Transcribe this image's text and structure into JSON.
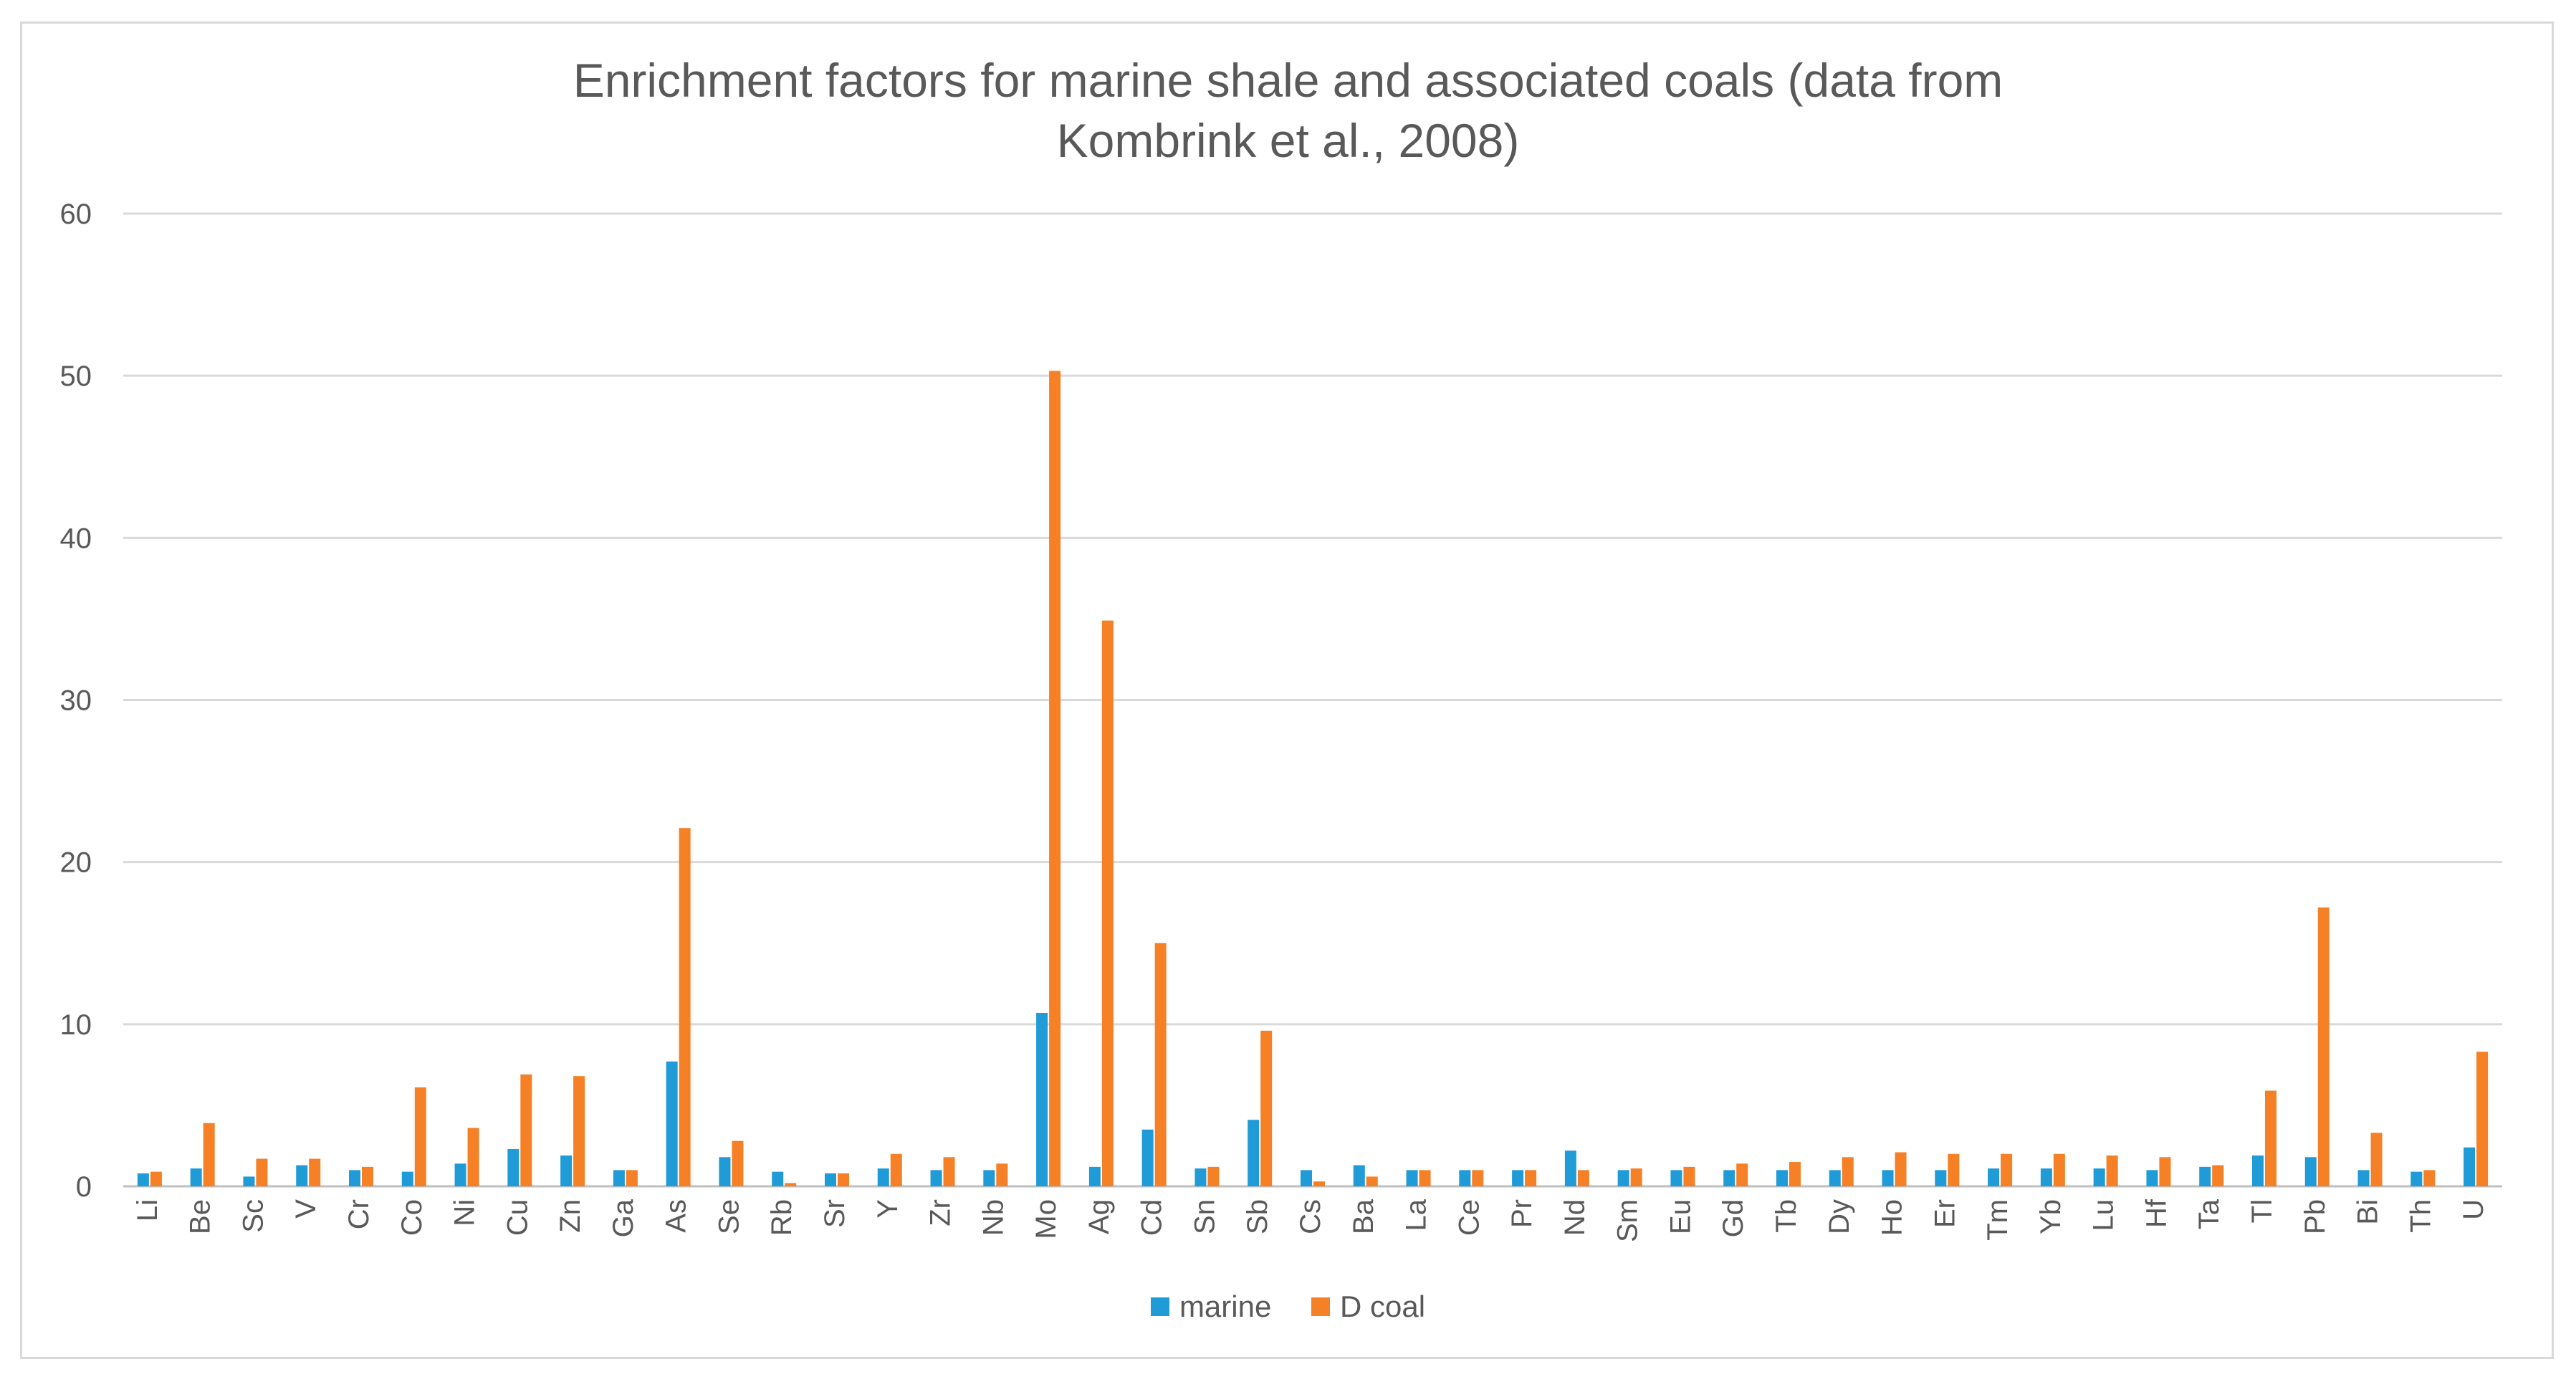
{
  "chart_data": {
    "type": "bar",
    "title_lines": [
      "Enrichment factors for marine shale and associated coals (data from",
      "Kombrink et al., 2008)"
    ],
    "xlabel": "",
    "ylabel": "",
    "ylim": [
      0,
      60
    ],
    "yticks": [
      0,
      10,
      20,
      30,
      40,
      50,
      60
    ],
    "grid": true,
    "legend_position": "bottom",
    "categories": [
      "Li",
      "Be",
      "Sc",
      "V",
      "Cr",
      "Co",
      "Ni",
      "Cu",
      "Zn",
      "Ga",
      "As",
      "Se",
      "Rb",
      "Sr",
      "Y",
      "Zr",
      "Nb",
      "Mo",
      "Ag",
      "Cd",
      "Sn",
      "Sb",
      "Cs",
      "Ba",
      "La",
      "Ce",
      "Pr",
      "Nd",
      "Sm",
      "Eu",
      "Gd",
      "Tb",
      "Dy",
      "Ho",
      "Er",
      "Tm",
      "Yb",
      "Lu",
      "Hf",
      "Ta",
      "Tl",
      "Pb",
      "Bi",
      "Th",
      "U"
    ],
    "series": [
      {
        "name": "marine",
        "color": "#1f9bd7",
        "values": [
          0.8,
          1.1,
          0.6,
          1.3,
          1.0,
          0.9,
          1.4,
          2.3,
          1.9,
          1.0,
          7.7,
          1.8,
          0.9,
          0.8,
          1.1,
          1.0,
          1.0,
          10.7,
          1.2,
          3.5,
          1.1,
          4.1,
          1.0,
          1.3,
          1.0,
          1.0,
          1.0,
          2.2,
          1.0,
          1.0,
          1.0,
          1.0,
          1.0,
          1.0,
          1.0,
          1.1,
          1.1,
          1.1,
          1.0,
          1.2,
          1.9,
          1.8,
          1.0,
          0.9,
          2.4
        ]
      },
      {
        "name": "D coal",
        "color": "#f58025",
        "values": [
          0.9,
          3.9,
          1.7,
          1.7,
          1.2,
          6.1,
          3.6,
          6.9,
          6.8,
          1.0,
          22.1,
          2.8,
          0.2,
          0.8,
          2.0,
          1.8,
          1.4,
          50.3,
          34.9,
          15.0,
          1.2,
          9.6,
          0.3,
          0.6,
          1.0,
          1.0,
          1.0,
          1.0,
          1.1,
          1.2,
          1.4,
          1.5,
          1.8,
          2.1,
          2.0,
          2.0,
          2.0,
          1.9,
          1.8,
          1.3,
          5.9,
          17.2,
          3.3,
          1.0,
          8.3
        ]
      }
    ]
  }
}
